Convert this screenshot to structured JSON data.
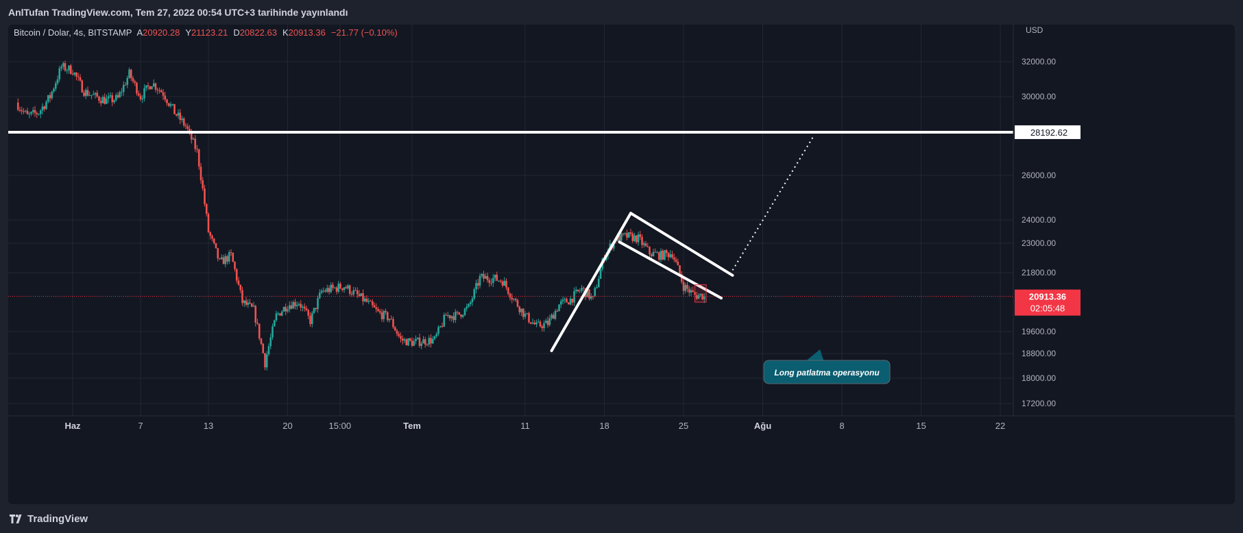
{
  "header": {
    "publisher_line": "AnlTufan TradingView.com, Tem 27, 2022 00:54 UTC+3 tarihinde yayınlandı"
  },
  "legend": {
    "symbol": "Bitcoin / Dolar, 4s, BITSTAMP",
    "open_label": "A",
    "open_value": "20920.28",
    "high_label": "Y",
    "high_value": "21123.21",
    "low_label": "D",
    "low_value": "20822.63",
    "close_label": "K",
    "close_value": "20913.36",
    "change": "−21.77 (−0.10%)"
  },
  "footer": {
    "brand": "TradingView"
  },
  "colors": {
    "up": "#26a69a",
    "down": "#ef5350",
    "background": "#131722",
    "grid": "#232733",
    "text": "#b2b5be",
    "price_tag": "#f23645",
    "callout": "#0b5d70",
    "drawing": "#ffffff"
  },
  "chart_data": {
    "type": "candlestick",
    "currency": "USD",
    "y_ticks": [
      "32000.00",
      "30000.00",
      "26000.00",
      "24000.00",
      "23000.00",
      "21800.00",
      "19600.00",
      "18800.00",
      "18000.00",
      "17200.00"
    ],
    "y_tick_values": [
      32000,
      30000,
      26000,
      24000,
      23000,
      21800,
      19600,
      18800,
      18000,
      17200
    ],
    "x_ticks": [
      {
        "label": "Haz",
        "date": "2022-06-01",
        "bold": true
      },
      {
        "label": "7",
        "date": "2022-06-07",
        "bold": false
      },
      {
        "label": "13",
        "date": "2022-06-13",
        "bold": false
      },
      {
        "label": "20",
        "date": "2022-06-20",
        "bold": false
      },
      {
        "label": "15:00",
        "date": "2022-06-24T15:00",
        "bold": false
      },
      {
        "label": "Tem",
        "date": "2022-07-01",
        "bold": true
      },
      {
        "label": "11",
        "date": "2022-07-11",
        "bold": false
      },
      {
        "label": "18",
        "date": "2022-07-18",
        "bold": false
      },
      {
        "label": "25",
        "date": "2022-07-25",
        "bold": false
      },
      {
        "label": "Ağu",
        "date": "2022-08-01",
        "bold": true
      },
      {
        "label": "8",
        "date": "2022-08-08",
        "bold": false
      },
      {
        "label": "15",
        "date": "2022-08-15",
        "bold": false
      },
      {
        "label": "22",
        "date": "2022-08-22",
        "bold": false
      }
    ],
    "price_path": [
      [
        "2022-05-27",
        29700
      ],
      [
        "2022-05-28",
        29000
      ],
      [
        "2022-05-29",
        29200
      ],
      [
        "2022-05-30",
        30000
      ],
      [
        "2022-05-31",
        31700
      ],
      [
        "2022-06-01",
        31500
      ],
      [
        "2022-06-02",
        30300
      ],
      [
        "2022-06-03",
        30000
      ],
      [
        "2022-06-04",
        29800
      ],
      [
        "2022-06-05",
        29900
      ],
      [
        "2022-06-06",
        31300
      ],
      [
        "2022-06-07",
        30000
      ],
      [
        "2022-06-08",
        30800
      ],
      [
        "2022-06-09",
        30200
      ],
      [
        "2022-06-10",
        29200
      ],
      [
        "2022-06-11",
        28500
      ],
      [
        "2022-06-12",
        27200
      ],
      [
        "2022-06-13",
        23500
      ],
      [
        "2022-06-14",
        22200
      ],
      [
        "2022-06-15",
        22500
      ],
      [
        "2022-06-16",
        20700
      ],
      [
        "2022-06-17",
        20400
      ],
      [
        "2022-06-18",
        18500
      ],
      [
        "2022-06-19",
        20200
      ],
      [
        "2022-06-20",
        20600
      ],
      [
        "2022-06-21",
        20700
      ],
      [
        "2022-06-22",
        20000
      ],
      [
        "2022-06-23",
        21100
      ],
      [
        "2022-06-24",
        21200
      ],
      [
        "2022-06-25",
        21300
      ],
      [
        "2022-06-26",
        21000
      ],
      [
        "2022-06-27",
        20700
      ],
      [
        "2022-06-28",
        20300
      ],
      [
        "2022-06-29",
        20100
      ],
      [
        "2022-06-30",
        19300
      ],
      [
        "2022-07-01",
        19200
      ],
      [
        "2022-07-02",
        19250
      ],
      [
        "2022-07-03",
        19300
      ],
      [
        "2022-07-04",
        20200
      ],
      [
        "2022-07-05",
        20200
      ],
      [
        "2022-07-06",
        20500
      ],
      [
        "2022-07-07",
        21600
      ],
      [
        "2022-07-08",
        21600
      ],
      [
        "2022-07-09",
        21500
      ],
      [
        "2022-07-10",
        20800
      ],
      [
        "2022-07-11",
        20200
      ],
      [
        "2022-07-12",
        19800
      ],
      [
        "2022-07-13",
        19900
      ],
      [
        "2022-07-14",
        20600
      ],
      [
        "2022-07-15",
        20800
      ],
      [
        "2022-07-16",
        21200
      ],
      [
        "2022-07-17",
        20800
      ],
      [
        "2022-07-18",
        22500
      ],
      [
        "2022-07-19",
        23200
      ],
      [
        "2022-07-20",
        23300
      ],
      [
        "2022-07-21",
        23200
      ],
      [
        "2022-07-22",
        22600
      ],
      [
        "2022-07-23",
        22500
      ],
      [
        "2022-07-24",
        22600
      ],
      [
        "2022-07-25",
        21300
      ],
      [
        "2022-07-26",
        20950
      ]
    ],
    "horizontal_line": {
      "price": 28192.62,
      "label": "28192.62"
    },
    "last_price": {
      "price": 20913.36,
      "label": "20913.36",
      "countdown": "02:05:48"
    },
    "annotation": "Long patlatma operasyonu",
    "drawings": {
      "flagpole": [
        [
          "2022-07-13T08:00",
          18900
        ],
        [
          "2022-07-20T08:00",
          24300
        ]
      ],
      "upper_flag_line": [
        [
          "2022-07-20T08:00",
          24300
        ],
        [
          "2022-07-29T08:00",
          21700
        ]
      ],
      "lower_flag_line": [
        [
          "2022-07-19T08:00",
          23050
        ],
        [
          "2022-07-28T08:00",
          20850
        ]
      ],
      "target_projection": [
        [
          "2022-07-29T08:00",
          21900
        ],
        [
          "2022-08-05T12:00",
          28000
        ]
      ],
      "highlight_box": [
        [
          "2022-07-26T00:00",
          20700
        ],
        [
          "2022-07-27T00:00",
          21350
        ]
      ]
    }
  }
}
